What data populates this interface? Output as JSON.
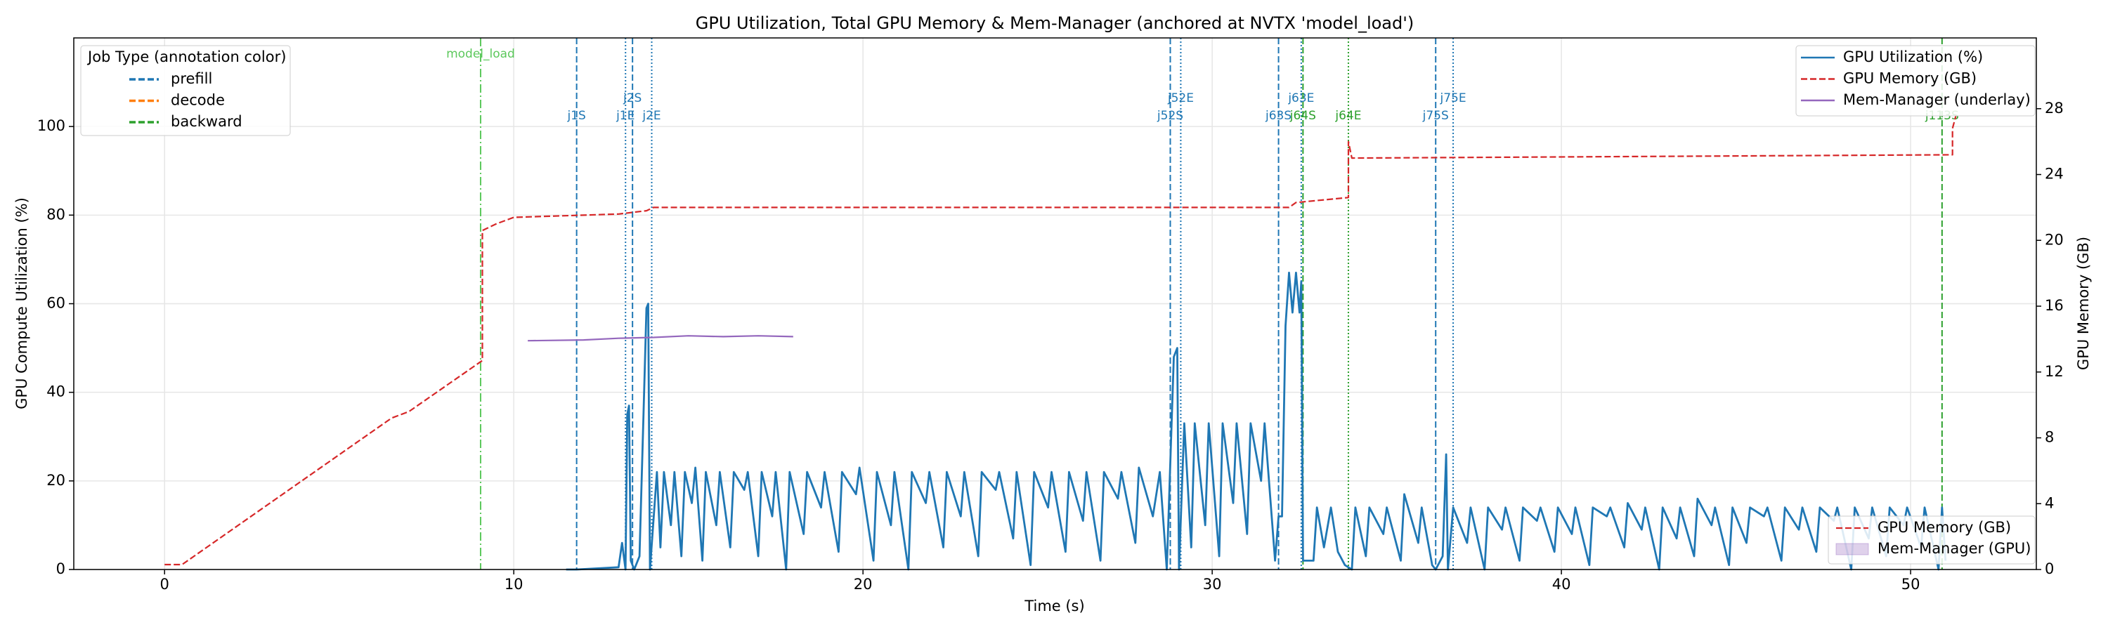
{
  "chart_data": {
    "type": "line",
    "title": "GPU Utilization, Total GPU Memory & Mem-Manager (anchored at NVTX 'model_load')",
    "xlabel": "Time (s)",
    "ylabel": "GPU Compute Utilization (%)",
    "y2label": "GPU Memory (GB)",
    "xlim": [
      -2.6,
      53.6
    ],
    "xticks": [
      0,
      10,
      20,
      30,
      40,
      50
    ],
    "ylim": [
      0,
      120
    ],
    "yticks": [
      0,
      20,
      40,
      60,
      80,
      100
    ],
    "y2lim": [
      0,
      32.3
    ],
    "y2ticks": [
      0,
      4,
      8,
      12,
      16,
      20,
      24,
      28
    ],
    "grid": true,
    "series": [
      {
        "name": "GPU Utilization (%)",
        "color": "#1f77b4",
        "x": [
          11.5,
          11.8,
          13.0,
          13.1,
          13.2,
          13.25,
          13.3,
          13.35,
          13.45,
          13.6,
          13.7,
          13.8,
          13.85,
          13.9,
          14.1,
          14.2,
          14.3,
          14.5,
          14.6,
          14.8,
          14.9,
          15.1,
          15.2,
          15.4,
          15.5,
          15.8,
          15.9,
          16.2,
          16.3,
          16.6,
          16.7,
          17.0,
          17.1,
          17.4,
          17.5,
          17.8,
          17.9,
          18.3,
          18.4,
          18.8,
          18.9,
          19.3,
          19.4,
          19.8,
          19.9,
          20.3,
          20.4,
          20.8,
          20.9,
          21.3,
          21.4,
          21.8,
          21.9,
          22.3,
          22.4,
          22.8,
          22.9,
          23.3,
          23.4,
          23.8,
          23.9,
          24.3,
          24.4,
          24.8,
          24.9,
          25.3,
          25.4,
          25.8,
          25.9,
          26.3,
          26.4,
          26.8,
          26.9,
          27.3,
          27.4,
          27.8,
          27.9,
          28.3,
          28.5,
          28.7,
          28.9,
          29.0,
          29.05,
          29.2,
          29.4,
          29.5,
          29.8,
          29.9,
          30.2,
          30.3,
          30.6,
          30.7,
          31.0,
          31.1,
          31.4,
          31.5,
          31.8,
          31.9,
          32.0,
          32.1,
          32.2,
          32.3,
          32.4,
          32.5,
          32.55,
          32.6,
          32.9,
          33.0,
          33.2,
          33.4,
          33.6,
          33.8,
          34.0,
          34.1,
          34.4,
          34.5,
          34.9,
          35.0,
          35.4,
          35.5,
          35.9,
          36.0,
          36.3,
          36.4,
          36.6,
          36.7,
          36.75,
          36.9,
          37.3,
          37.4,
          37.8,
          37.9,
          38.3,
          38.4,
          38.8,
          38.9,
          39.3,
          39.4,
          39.8,
          39.9,
          40.3,
          40.4,
          40.8,
          40.9,
          41.3,
          41.4,
          41.8,
          41.9,
          42.3,
          42.4,
          42.8,
          42.9,
          43.3,
          43.4,
          43.8,
          43.9,
          44.3,
          44.4,
          44.8,
          44.9,
          45.3,
          45.4,
          45.8,
          45.9,
          46.3,
          46.4,
          46.8,
          46.9,
          47.3,
          47.4,
          47.8,
          47.9,
          48.3,
          48.4,
          48.8,
          48.9,
          49.3,
          49.4,
          49.8,
          49.9,
          50.3,
          50.4,
          50.8,
          50.9,
          51.0
        ],
        "values": [
          0,
          0,
          0.5,
          6,
          0,
          35,
          37,
          2,
          0,
          3,
          31,
          59,
          60,
          0,
          22,
          5,
          22,
          10,
          22,
          3,
          22,
          15,
          23,
          2,
          22,
          10,
          22,
          5,
          22,
          18,
          22,
          3,
          22,
          12,
          22,
          0,
          22,
          8,
          22,
          14,
          22,
          4,
          22,
          17,
          23,
          2,
          22,
          10,
          22,
          0,
          22,
          15,
          22,
          5,
          22,
          12,
          22,
          3,
          22,
          18,
          22,
          7,
          22,
          1,
          22,
          14,
          22,
          4,
          22,
          11,
          22,
          2,
          22,
          16,
          22,
          6,
          23,
          12,
          22,
          0,
          48,
          50,
          0,
          33,
          5,
          33,
          10,
          33,
          3,
          33,
          15,
          33,
          8,
          33,
          20,
          33,
          2,
          12,
          12,
          55,
          67,
          58,
          67,
          58,
          65,
          2,
          2,
          14,
          5,
          14,
          4,
          1,
          0,
          14,
          3,
          14,
          8,
          14,
          2,
          17,
          6,
          14,
          1,
          0,
          3,
          26,
          0,
          14,
          6,
          14,
          0,
          14,
          9,
          14,
          2,
          14,
          11,
          14,
          4,
          14,
          8,
          14,
          1,
          14,
          12,
          14,
          5,
          15,
          9,
          14,
          0,
          14,
          7,
          14,
          3,
          16,
          10,
          14,
          1,
          14,
          6,
          14,
          12,
          14,
          2,
          14,
          9,
          14,
          4,
          14,
          11,
          14,
          0,
          14,
          7,
          14,
          3,
          14,
          10,
          14,
          5,
          14,
          0,
          14,
          2
        ]
      },
      {
        "name": "GPU Memory (GB)",
        "color": "#d62728",
        "axis": "y2",
        "dash": "dashed",
        "x": [
          0,
          0.5,
          6.5,
          7,
          9.1,
          9.1,
          9.5,
          10,
          13,
          13.8,
          14,
          32.2,
          32.4,
          33.9,
          33.9,
          34.0,
          51.2,
          51.2,
          51.3
        ],
        "values": [
          0.3,
          0.3,
          9.2,
          9.6,
          12.7,
          20.6,
          21.0,
          21.4,
          21.6,
          21.8,
          22.0,
          22.0,
          22.3,
          22.6,
          26.0,
          25.0,
          25.2,
          26.8,
          27.6
        ]
      },
      {
        "name": "Mem-Manager (underlay)",
        "color": "#9467bd",
        "axis": "y2",
        "x": [
          10.4,
          12,
          13,
          14,
          15,
          16,
          17,
          18
        ],
        "values": [
          13.9,
          13.95,
          14.05,
          14.1,
          14.2,
          14.15,
          14.2,
          14.15
        ]
      }
    ],
    "annotations": [
      {
        "label": "model_load",
        "x": 9.05,
        "color": "#5cc85c",
        "style": "dashdot"
      },
      {
        "label": "j1S",
        "x": 11.8,
        "color": "#1f77b4",
        "style": "dashed"
      },
      {
        "label": "j1E",
        "x": 13.2,
        "color": "#1f77b4",
        "style": "dotted"
      },
      {
        "label": "j2S",
        "x": 13.4,
        "color": "#1f77b4",
        "style": "dashed"
      },
      {
        "label": "j2E",
        "x": 13.95,
        "color": "#1f77b4",
        "style": "dotted"
      },
      {
        "label": "j52S",
        "x": 28.8,
        "color": "#1f77b4",
        "style": "dashed"
      },
      {
        "label": "j52E",
        "x": 29.1,
        "color": "#1f77b4",
        "style": "dotted"
      },
      {
        "label": "j63S",
        "x": 31.9,
        "color": "#1f77b4",
        "style": "dashed"
      },
      {
        "label": "j63E",
        "x": 32.55,
        "color": "#1f77b4",
        "style": "dotted"
      },
      {
        "label": "j64S",
        "x": 32.6,
        "color": "#2ca02c",
        "style": "dashed"
      },
      {
        "label": "j64E",
        "x": 33.9,
        "color": "#2ca02c",
        "style": "dotted"
      },
      {
        "label": "j75S",
        "x": 36.4,
        "color": "#1f77b4",
        "style": "dashed"
      },
      {
        "label": "j75E",
        "x": 36.9,
        "color": "#1f77b4",
        "style": "dotted"
      },
      {
        "label": "j113S",
        "x": 50.9,
        "color": "#2ca02c",
        "style": "dashed"
      }
    ],
    "job_legend": {
      "title": "Job Type (annotation color)",
      "items": [
        {
          "name": "prefill",
          "color": "#1f77b4"
        },
        {
          "name": "decode",
          "color": "#ff7f0e"
        },
        {
          "name": "backward",
          "color": "#2ca02c"
        }
      ]
    },
    "lower_legend": {
      "items": [
        {
          "name": "GPU Memory (GB)",
          "color": "#d62728"
        },
        {
          "name": "Mem-Manager (GPU)",
          "color": "#9467bd"
        }
      ]
    }
  }
}
